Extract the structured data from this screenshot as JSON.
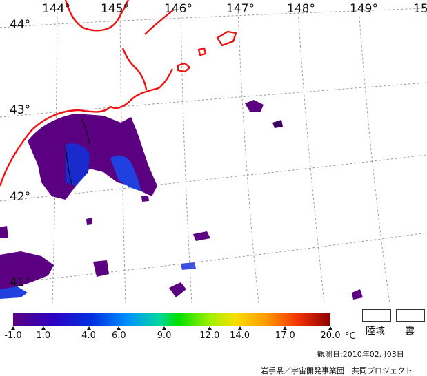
{
  "map": {
    "longitude_labels": [
      "144°",
      "145°",
      "146°",
      "147°",
      "148°",
      "149°",
      "15"
    ],
    "latitude_labels": [
      "44°",
      "43°",
      "42°",
      "41°"
    ],
    "colors": {
      "coastline": "#f01010",
      "grid": "#9a9a9a",
      "sst_low": "#5a0080",
      "sst_mid": "#2040e0",
      "contour": "#000000"
    }
  },
  "colorbar": {
    "ticks": [
      "-1.0",
      "1.0",
      "4.0",
      "6.0",
      "9.0",
      "12.0",
      "14.0",
      "17.0",
      "20.0"
    ],
    "tick_values": [
      -1.0,
      1.0,
      4.0,
      6.0,
      9.0,
      12.0,
      14.0,
      17.0,
      20.0
    ],
    "unit": "°C",
    "range": [
      -1.0,
      20.0
    ]
  },
  "legend": {
    "land_label": "陸域",
    "cloud_label": "雲"
  },
  "footer": {
    "observation_date": "観測日:2010年02月03日",
    "credit": "岩手県／宇宙開発事業団　共同プロジェクト"
  }
}
